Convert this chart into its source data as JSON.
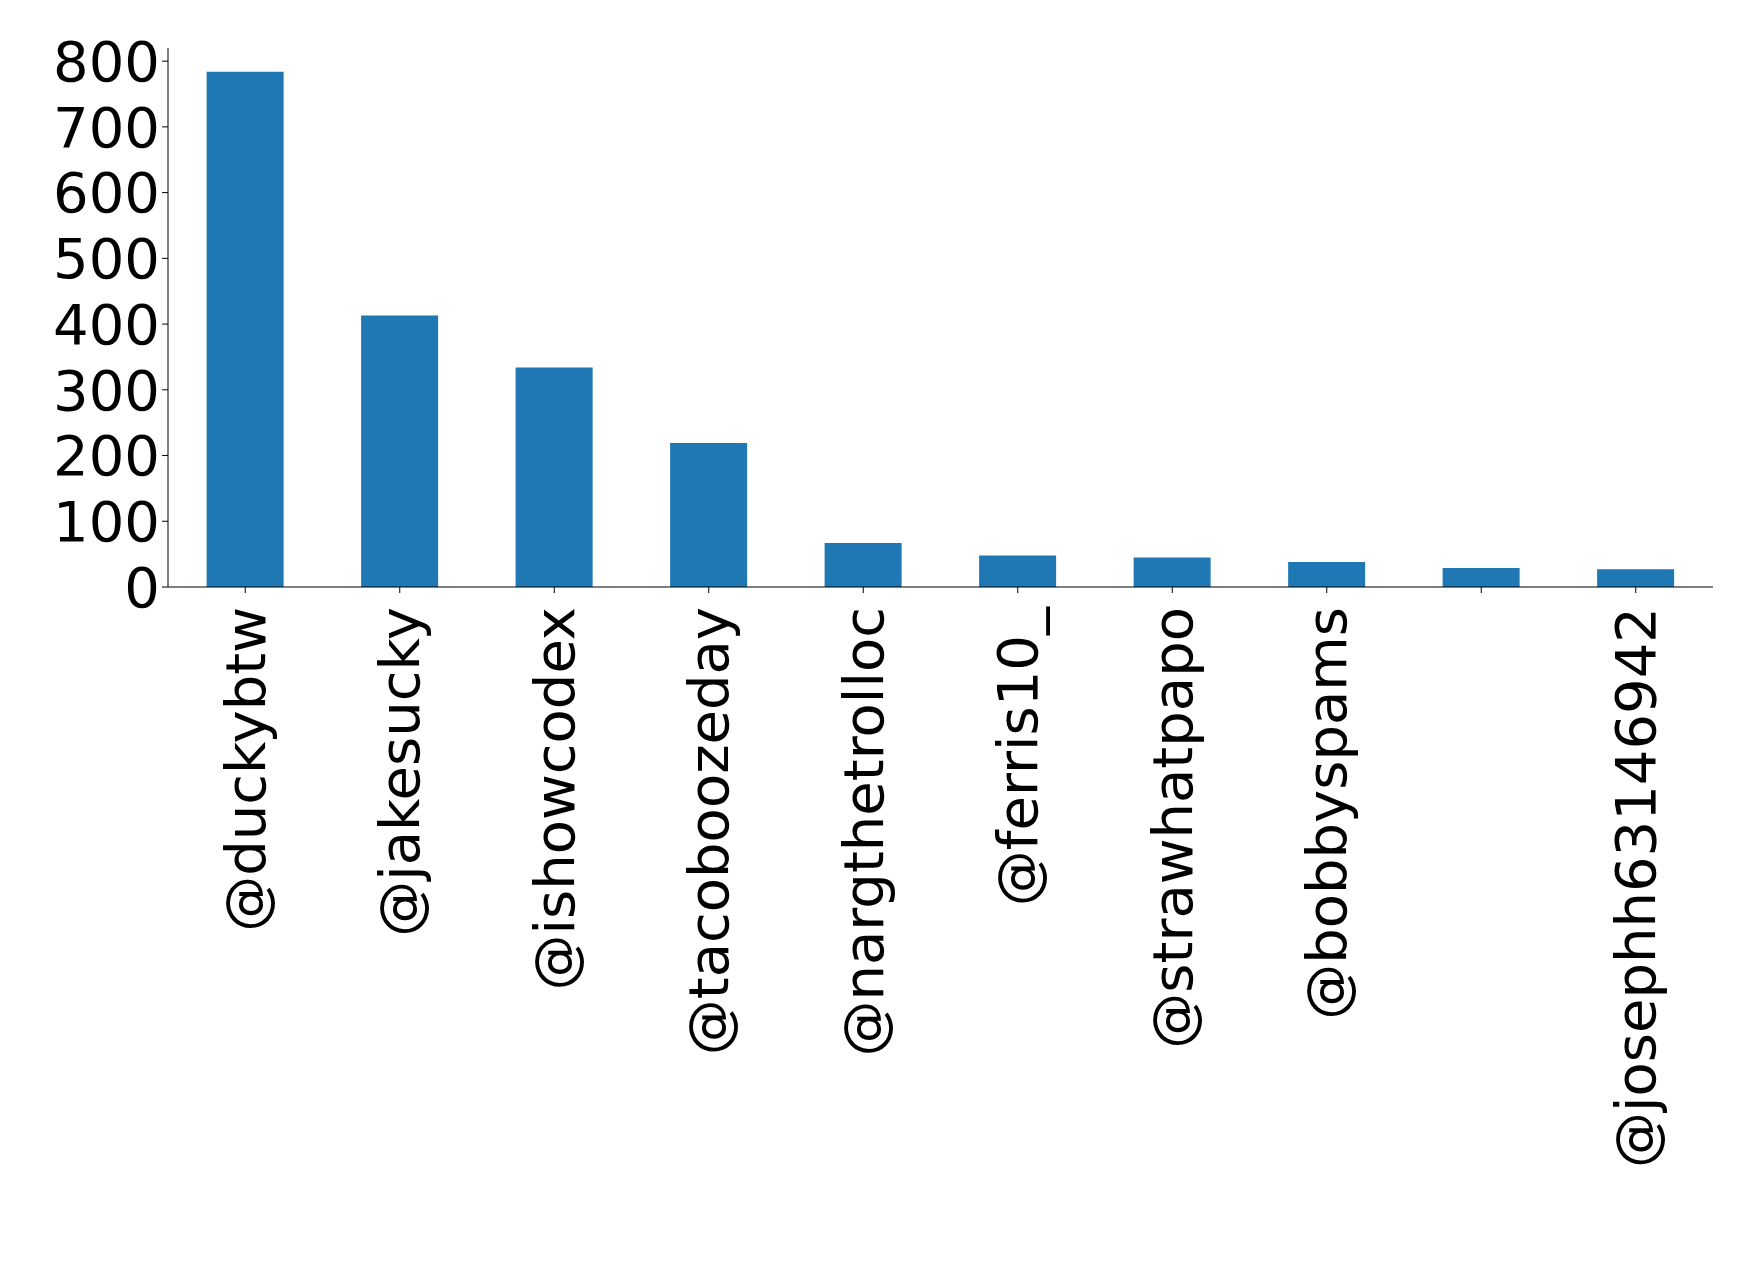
{
  "chart_data": {
    "type": "bar",
    "categories": [
      "@duckybtw",
      "@jakesucky",
      "@ishowcodex",
      "@tacoboozeday",
      "@nargthetrolloc",
      "@ferris10_",
      "@strawhatpapo",
      "@bobbyspams",
      null,
      "@josephh63146942"
    ],
    "values": [
      784,
      413,
      334,
      219,
      67,
      48,
      45,
      38,
      29,
      27
    ],
    "color": "#1f77b4",
    "ylim": [
      0,
      820
    ],
    "yticks": [
      0,
      100,
      200,
      300,
      400,
      500,
      600,
      700,
      800
    ],
    "grid": false
  }
}
